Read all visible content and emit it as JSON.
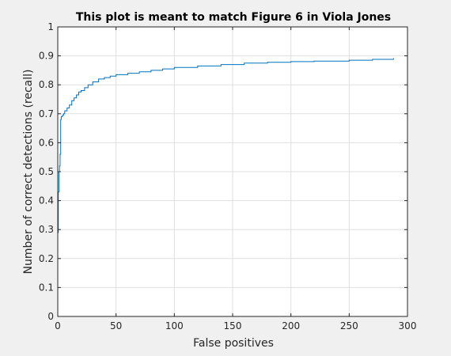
{
  "chart_data": {
    "type": "line",
    "title": "This plot is meant to match Figure 6 in Viola Jones",
    "xlabel": "False positives",
    "ylabel": "Number of correct detections (recall)",
    "xlim": [
      0,
      300
    ],
    "ylim": [
      0,
      1
    ],
    "xticks": [
      0,
      50,
      100,
      150,
      200,
      250,
      300
    ],
    "yticks": [
      0,
      0.1,
      0.2,
      0.3,
      0.4,
      0.5,
      0.6,
      0.7,
      0.8,
      0.9,
      1
    ],
    "xtick_labels": [
      "0",
      "50",
      "100",
      "150",
      "200",
      "250",
      "300"
    ],
    "ytick_labels": [
      "0",
      "0.1",
      "0.2",
      "0.3",
      "0.4",
      "0.5",
      "0.6",
      "0.7",
      "0.8",
      "0.9",
      "1"
    ],
    "grid": true,
    "line_style": "step",
    "color": "#0072bd",
    "series": [
      {
        "x": [
          0,
          0,
          0.5,
          1,
          1.5,
          2,
          2.5,
          3,
          4,
          5,
          6,
          8,
          10,
          12,
          14,
          16,
          18,
          20,
          23,
          26,
          30,
          35,
          40,
          45,
          50,
          60,
          70,
          80,
          90,
          100,
          120,
          140,
          160,
          180,
          200,
          220,
          250,
          270,
          288
        ],
        "y": [
          0,
          0.29,
          0.43,
          0.5,
          0.52,
          0.56,
          0.68,
          0.69,
          0.695,
          0.7,
          0.71,
          0.72,
          0.73,
          0.745,
          0.755,
          0.765,
          0.775,
          0.78,
          0.79,
          0.8,
          0.81,
          0.82,
          0.825,
          0.83,
          0.835,
          0.84,
          0.845,
          0.85,
          0.855,
          0.86,
          0.865,
          0.87,
          0.875,
          0.878,
          0.88,
          0.882,
          0.885,
          0.888,
          0.892
        ]
      }
    ]
  }
}
